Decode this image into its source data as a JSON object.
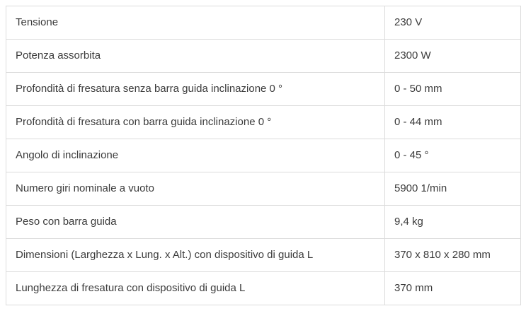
{
  "chart_data": {
    "type": "table",
    "rows": [
      [
        "Tensione",
        "230 V"
      ],
      [
        "Potenza assorbita",
        "2300 W"
      ],
      [
        "Profondità di fresatura senza barra guida inclinazione 0 °",
        "0 - 50 mm"
      ],
      [
        "Profondità di fresatura con barra guida inclinazione 0 °",
        "0 - 44 mm"
      ],
      [
        "Angolo di inclinazione",
        "0 - 45 °"
      ],
      [
        "Numero giri nominale a vuoto",
        "5900 1/min"
      ],
      [
        "Peso con barra guida",
        "9,4 kg"
      ],
      [
        "Dimensioni (Larghezza x Lung. x Alt.) con dispositivo di guida L",
        "370 x 810 x 280 mm"
      ],
      [
        "Lunghezza di fresatura con dispositivo di guida L",
        "370 mm"
      ]
    ],
    "title": "",
    "layout": {
      "grid": true,
      "header_row": false
    }
  },
  "colors": {
    "border": "#dcdcdc",
    "text": "#3b3b3b",
    "background": "#ffffff"
  }
}
